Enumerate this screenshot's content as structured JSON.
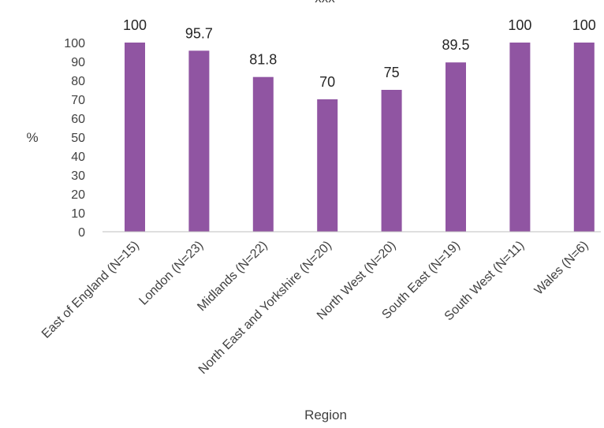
{
  "chart_data": {
    "type": "bar",
    "title_partial": "xxx",
    "xlabel": "Region",
    "ylabel": "%",
    "ylim": [
      0,
      100
    ],
    "yticks": [
      0,
      10,
      20,
      30,
      40,
      50,
      60,
      70,
      80,
      90,
      100
    ],
    "categories": [
      "East of England (N=15)",
      "London (N=23)",
      "Midlands (N=22)",
      "North East and Yorkshire (N=20)",
      "North West (N=20)",
      "South East (N=19)",
      "South West (N=11)",
      "Wales (N=6)"
    ],
    "values": [
      100,
      95.7,
      81.8,
      70,
      75,
      89.5,
      100,
      100
    ],
    "data_labels": [
      "100",
      "95.7",
      "81.8",
      "70",
      "75",
      "89.5",
      "100",
      "100"
    ],
    "bar_color": "#9055A2",
    "axis_color": "#BFBFBF",
    "grid": false,
    "legend": "none"
  }
}
